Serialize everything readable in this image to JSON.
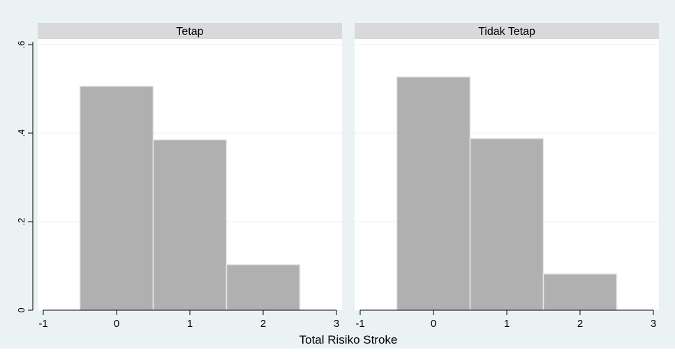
{
  "chart_data": {
    "type": "bar",
    "xlabel": "Total Risiko Stroke",
    "ylabel": "",
    "xlim": [
      -1,
      3
    ],
    "ylim": [
      0,
      0.6
    ],
    "x_ticks": [
      -1,
      0,
      1,
      2,
      3
    ],
    "y_ticks": [
      0,
      0.2,
      0.4,
      0.6
    ],
    "y_tick_labels": [
      "0",
      ".2",
      ".4",
      ".6"
    ],
    "grid": true,
    "bar_width": 1,
    "colors": {
      "bar_fill": "#b0b0b0",
      "bar_stroke": "#e6e6e6",
      "panel_bg": "#ffffff",
      "header_bg": "#d9d9d9",
      "outer_bg": "#eaf2f3",
      "grid": "#eaf2f3"
    },
    "panels": [
      {
        "title": "Tetap",
        "bins": [
          0,
          1,
          2
        ],
        "values": [
          0.506,
          0.385,
          0.103
        ]
      },
      {
        "title": "Tidak Tetap",
        "bins": [
          0,
          1,
          2
        ],
        "values": [
          0.527,
          0.388,
          0.082
        ]
      }
    ]
  }
}
